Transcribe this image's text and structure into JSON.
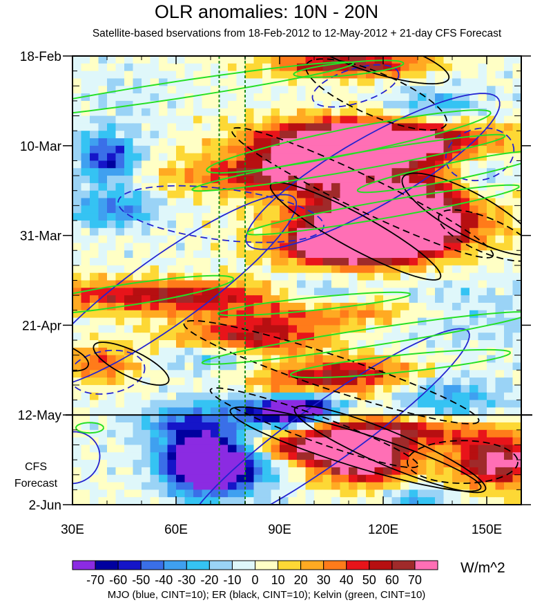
{
  "title": "OLR anomalies: 10N - 20N",
  "subtitle": "Satellite-based bservations from 18-Feb-2012 to 12-May-2012 + 21-day CFS Forecast",
  "units": "W/m^2",
  "caption": "MJO (blue, CINT=10); ER (black, CINT=10); Kelvin (green, CINT=10)",
  "forecast_label": [
    "CFS",
    "Forecast"
  ],
  "chart_data": {
    "type": "heatmap",
    "title": "OLR anomalies: 10N - 20N",
    "subtitle": "Satellite-based bservations from 18-Feb-2012 to 12-May-2012 + 21-day CFS Forecast",
    "x_axis": {
      "label": "",
      "range": [
        "30E",
        "160E"
      ],
      "tick_values": [
        30,
        60,
        90,
        120,
        150
      ],
      "tick_labels": [
        "30E",
        "60E",
        "90E",
        "120E",
        "150E"
      ]
    },
    "y_axis": {
      "label": "",
      "range": [
        "18-Feb",
        "2-Jun"
      ],
      "tick_labels": [
        "18-Feb",
        "10-Mar",
        "31-Mar",
        "21-Apr",
        "12-May",
        "2-Jun"
      ],
      "tick_days": [
        0,
        21,
        42,
        63,
        84,
        105
      ],
      "reversed": true
    },
    "observation_end": "12-May",
    "forecast_days": 21,
    "reference_longitudes": [
      72.5,
      80
    ],
    "colorbar": {
      "units": "W/m^2",
      "tick_labels": [
        "-70",
        "-60",
        "-50",
        "-40",
        "-30",
        "-20",
        "-10",
        "0",
        "10",
        "20",
        "30",
        "40",
        "50",
        "60",
        "70"
      ],
      "colors": [
        "#8B2BE2",
        "#00009F",
        "#1515C8",
        "#3A6FE8",
        "#3FA0F0",
        "#35C3F3",
        "#9AD3F6",
        "#DFF7FA",
        "#FFFFC5",
        "#FDD835",
        "#FFAA22",
        "#FF7B1A",
        "#E8141A",
        "#B70F11",
        "#A02A2A",
        "#FF6FB5"
      ]
    },
    "contours": {
      "mjo": {
        "color": "#2323D0",
        "cint": 10
      },
      "er": {
        "color": "#000000",
        "cint": 10
      },
      "kelvin": {
        "color": "#25E025",
        "cint": 10
      }
    },
    "blobs": [
      [
        118,
        20,
        45,
        7,
        -0.25,
        9,
        4
      ],
      [
        108,
        22,
        30,
        8,
        0.0,
        7,
        4
      ],
      [
        122,
        38,
        35,
        12,
        -0.45,
        14,
        6
      ],
      [
        120,
        42,
        22,
        6,
        -0.45,
        8,
        4
      ],
      [
        110,
        45,
        25,
        5,
        -0.2,
        7,
        4
      ],
      [
        90,
        28,
        40,
        6,
        -0.25,
        6,
        3
      ],
      [
        105,
        60,
        50,
        5,
        -0.15,
        4,
        3
      ],
      [
        55,
        56,
        50,
        5,
        -0.2,
        6,
        3
      ],
      [
        82,
        66,
        30,
        6,
        -0.3,
        6,
        3
      ],
      [
        95,
        78,
        30,
        5,
        0.0,
        5,
        3
      ],
      [
        110,
        74,
        30,
        5,
        -0.2,
        5,
        3
      ],
      [
        118,
        88,
        40,
        5,
        -0.3,
        7,
        4
      ],
      [
        114,
        95,
        20,
        7,
        0.0,
        9,
        5
      ],
      [
        100,
        92,
        25,
        4,
        -0.1,
        6,
        3
      ],
      [
        153,
        95,
        18,
        8,
        0.0,
        8,
        5
      ],
      [
        38,
        72,
        15,
        6,
        0.0,
        4,
        3
      ],
      [
        110,
        2,
        30,
        4,
        0.0,
        7,
        3
      ],
      [
        40,
        24,
        12,
        8,
        0.0,
        -6,
        -5
      ],
      [
        42,
        36,
        18,
        6,
        0.0,
        -4,
        -3
      ],
      [
        72,
        96,
        20,
        9,
        0.0,
        -9,
        -5
      ],
      [
        67,
        93,
        15,
        12,
        0.0,
        -5,
        -4
      ],
      [
        92,
        84,
        18,
        5,
        -0.2,
        -7,
        -4
      ],
      [
        98,
        81,
        15,
        5,
        -0.2,
        -6,
        -4
      ],
      [
        80,
        80,
        20,
        6,
        0.0,
        -3,
        -3
      ],
      [
        72,
        70,
        22,
        5,
        -0.2,
        -3,
        -3
      ],
      [
        60,
        86,
        20,
        6,
        0.0,
        -3,
        -3
      ],
      [
        140,
        60,
        40,
        10,
        0.0,
        -2,
        -2
      ],
      [
        148,
        30,
        14,
        10,
        0.0,
        -3,
        -3
      ],
      [
        135,
        12,
        20,
        6,
        0.0,
        -3,
        -3
      ],
      [
        138,
        80,
        25,
        8,
        0.0,
        -3,
        -3
      ],
      [
        130,
        104,
        12,
        5,
        0.0,
        -3,
        -3
      ],
      [
        100,
        56,
        18,
        6,
        0.0,
        -3,
        -3
      ],
      [
        45,
        10,
        18,
        10,
        0.0,
        -1,
        -1
      ]
    ],
    "mjo_ellipses": [
      [
        117,
        27,
        42,
        8,
        0.52,
        false
      ],
      [
        57,
        55,
        46,
        8,
        0.62,
        false
      ],
      [
        104,
        88,
        50,
        7,
        0.62,
        false
      ],
      [
        73,
        37,
        30,
        6,
        -0.12,
        true
      ],
      [
        148,
        23,
        10,
        6,
        0.25,
        true
      ],
      [
        112,
        7,
        13,
        4,
        0.3,
        true
      ],
      [
        40,
        74,
        11,
        5,
        0.15,
        true
      ],
      [
        30,
        94,
        8,
        6,
        0.4,
        false
      ]
    ],
    "er_ellipses": [
      [
        112,
        41,
        28,
        4,
        -0.5,
        false
      ],
      [
        114,
        32,
        42,
        4,
        -0.45,
        true
      ],
      [
        105,
        74,
        45,
        4,
        -0.32,
        true
      ],
      [
        112,
        92,
        38,
        4,
        -0.3,
        false
      ],
      [
        122,
        92,
        30,
        4,
        -0.4,
        false
      ],
      [
        100,
        87,
        32,
        3,
        -0.35,
        true
      ],
      [
        118,
        9,
        22,
        5,
        -0.4,
        true
      ],
      [
        145,
        37,
        22,
        5,
        -0.5,
        false
      ],
      [
        143,
        95,
        16,
        5,
        0.0,
        true
      ],
      [
        150,
        42,
        15,
        4,
        -0.4,
        true
      ],
      [
        47,
        72,
        12,
        3,
        -0.45,
        false
      ],
      [
        25,
        70,
        10,
        3,
        -0.3,
        false
      ],
      [
        118,
        0,
        22,
        4,
        -0.3,
        false
      ]
    ],
    "kelvin_ellipses": [
      [
        60,
        8,
        52,
        2,
        0.15,
        false
      ],
      [
        110,
        3,
        16,
        1.5,
        0.1,
        false
      ],
      [
        110,
        20,
        42,
        3,
        0.2,
        false
      ],
      [
        110,
        25,
        46,
        2,
        0.17,
        false
      ],
      [
        140,
        27,
        28,
        2,
        0.2,
        false
      ],
      [
        120,
        36,
        40,
        2,
        0.17,
        false
      ],
      [
        45,
        56,
        32,
        2.5,
        0.15,
        false
      ],
      [
        115,
        66,
        48,
        2,
        0.15,
        false
      ],
      [
        125,
        72,
        32,
        2,
        0.1,
        false
      ],
      [
        100,
        58,
        28,
        1.5,
        0.1,
        false
      ],
      [
        35,
        87,
        4,
        1.2,
        0.0,
        false
      ]
    ]
  }
}
